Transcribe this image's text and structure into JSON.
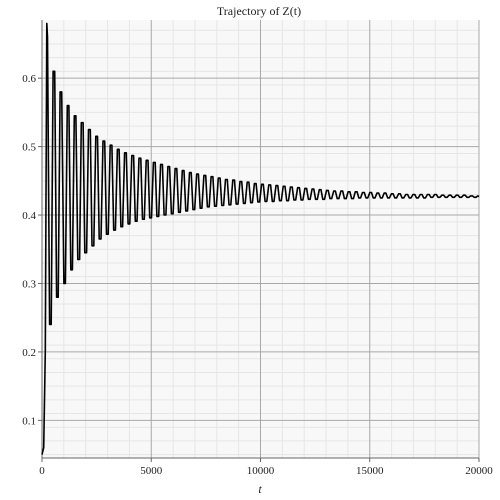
{
  "chart_data": {
    "type": "line",
    "title": "Trajectory of Z(t)",
    "xlabel": "t",
    "ylabel": "",
    "xlim": [
      0,
      20000
    ],
    "ylim": [
      0.045,
      0.685
    ],
    "x_ticks": [
      0,
      5000,
      10000,
      15000,
      20000
    ],
    "x_tick_labels": [
      "0",
      "5000",
      "10000",
      "15000",
      "20000"
    ],
    "y_ticks": [
      0.1,
      0.2,
      0.3,
      0.4,
      0.5,
      0.6
    ],
    "y_tick_labels": [
      "0.1",
      "0.2",
      "0.3",
      "0.4",
      "0.5",
      "0.6"
    ],
    "grid": true,
    "legend": "none",
    "series": [
      {
        "color": "#000000",
        "x": [
          0,
          80,
          150,
          220,
          250,
          350,
          420,
          510,
          580,
          670,
          740,
          830,
          900,
          1000,
          1070,
          1160,
          1230,
          1320,
          1390,
          1480,
          1550,
          1640,
          1720,
          1800,
          1880,
          1960,
          2040,
          2130,
          2210,
          2290,
          2370,
          2460,
          2540,
          2620,
          2700,
          2790,
          2870,
          2950,
          3030,
          3120,
          3200,
          3280,
          3360,
          3450,
          3530,
          3610,
          3690,
          3780,
          3860,
          3940,
          4020,
          4110,
          4190,
          4270,
          4350,
          4440,
          4520,
          4600,
          4680,
          4770,
          4850,
          4930,
          5010,
          5100,
          5180,
          5260,
          5340,
          5430,
          5510,
          5590,
          5670,
          5760,
          5840,
          5920,
          6000,
          6090,
          6170,
          6250,
          6330,
          6420,
          6500,
          6580,
          6660,
          6750,
          6830,
          6910,
          6990,
          7080,
          7160,
          7240,
          7320,
          7410,
          7490,
          7570,
          7650,
          7740,
          7820,
          7900,
          7980,
          8070,
          8150,
          8230,
          8310,
          8400,
          8480,
          8560,
          8640,
          8730,
          8810,
          8890,
          8970,
          9060,
          9140,
          9220,
          9300,
          9390,
          9470,
          9550,
          9630,
          9720,
          9800,
          9880,
          9960,
          10050,
          10130,
          10210,
          10290,
          10380,
          10460,
          10540,
          10620,
          10710,
          10790,
          10870,
          10950,
          11040,
          11120,
          11200,
          11280,
          11370,
          11450,
          11530,
          11610,
          11700,
          11780,
          11860,
          11940,
          12030,
          12110,
          12190,
          12270,
          12360,
          12440,
          12520,
          12600,
          12690,
          12770,
          12850,
          12930,
          13020,
          13100,
          13180,
          13260,
          13350,
          13430,
          13510,
          13590,
          13680,
          13760,
          13840,
          13920,
          14010,
          14090,
          14170,
          14250,
          14340,
          14420,
          14500,
          14580,
          14670,
          14750,
          14830,
          14910,
          15000,
          15080,
          15160,
          15240,
          15330,
          15410,
          15490,
          15570,
          15660,
          15740,
          15820,
          15900,
          15990,
          16070,
          16150,
          16230,
          16320,
          16400,
          16480,
          16560,
          16650,
          16730,
          16810,
          16890,
          16980,
          17060,
          17140,
          17220,
          17310,
          17390,
          17470,
          17550,
          17640,
          17720,
          17800,
          17880,
          17970,
          18050,
          18130,
          18210,
          18300,
          18380,
          18460,
          18540,
          18630,
          18710,
          18790,
          18870,
          18960,
          19040,
          19120,
          19200,
          19290,
          19370,
          19450,
          19530,
          19620,
          19700,
          19780,
          19860,
          19950,
          20000
        ],
        "y": [
          0.05,
          0.06,
          0.2,
          0.68,
          0.66,
          0.24,
          0.24,
          0.61,
          0.61,
          0.28,
          0.28,
          0.58,
          0.58,
          0.3,
          0.3,
          0.56,
          0.56,
          0.32,
          0.32,
          0.545,
          0.545,
          0.335,
          0.335,
          0.535,
          0.535,
          0.345,
          0.345,
          0.525,
          0.525,
          0.355,
          0.355,
          0.515,
          0.515,
          0.365,
          0.365,
          0.508,
          0.508,
          0.372,
          0.372,
          0.502,
          0.502,
          0.378,
          0.378,
          0.496,
          0.496,
          0.383,
          0.383,
          0.491,
          0.491,
          0.387,
          0.387,
          0.487,
          0.487,
          0.391,
          0.391,
          0.483,
          0.483,
          0.394,
          0.394,
          0.48,
          0.48,
          0.396,
          0.396,
          0.477,
          0.477,
          0.398,
          0.398,
          0.474,
          0.474,
          0.4,
          0.4,
          0.471,
          0.471,
          0.402,
          0.402,
          0.468,
          0.468,
          0.404,
          0.404,
          0.465,
          0.465,
          0.406,
          0.406,
          0.462,
          0.462,
          0.408,
          0.408,
          0.46,
          0.46,
          0.41,
          0.41,
          0.458,
          0.458,
          0.412,
          0.412,
          0.456,
          0.456,
          0.413,
          0.413,
          0.454,
          0.454,
          0.414,
          0.414,
          0.452,
          0.452,
          0.415,
          0.415,
          0.451,
          0.451,
          0.416,
          0.416,
          0.449,
          0.449,
          0.417,
          0.417,
          0.448,
          0.448,
          0.418,
          0.418,
          0.446,
          0.446,
          0.419,
          0.419,
          0.445,
          0.445,
          0.42,
          0.42,
          0.444,
          0.444,
          0.42,
          0.42,
          0.443,
          0.443,
          0.421,
          0.421,
          0.442,
          0.442,
          0.421,
          0.421,
          0.441,
          0.441,
          0.422,
          0.422,
          0.44,
          0.44,
          0.422,
          0.422,
          0.439,
          0.439,
          0.423,
          0.423,
          0.438,
          0.438,
          0.423,
          0.423,
          0.437,
          0.437,
          0.423,
          0.423,
          0.436,
          0.436,
          0.424,
          0.424,
          0.435,
          0.435,
          0.424,
          0.424,
          0.435,
          0.435,
          0.424,
          0.424,
          0.434,
          0.434,
          0.424,
          0.424,
          0.434,
          0.434,
          0.425,
          0.425,
          0.433,
          0.433,
          0.425,
          0.425,
          0.433,
          0.433,
          0.425,
          0.425,
          0.432,
          0.432,
          0.425,
          0.425,
          0.432,
          0.432,
          0.425,
          0.425,
          0.431,
          0.431,
          0.425,
          0.425,
          0.431,
          0.431,
          0.425,
          0.425,
          0.43,
          0.43,
          0.425,
          0.425,
          0.43,
          0.43,
          0.425,
          0.425,
          0.43,
          0.43,
          0.425,
          0.425,
          0.43,
          0.43,
          0.426,
          0.426,
          0.43,
          0.43,
          0.426,
          0.426,
          0.429,
          0.429,
          0.426,
          0.426,
          0.429,
          0.429,
          0.426,
          0.426,
          0.429,
          0.429,
          0.426,
          0.426,
          0.429,
          0.429,
          0.426,
          0.426,
          0.428,
          0.428,
          0.426,
          0.426,
          0.428,
          0.427
        ]
      }
    ]
  }
}
